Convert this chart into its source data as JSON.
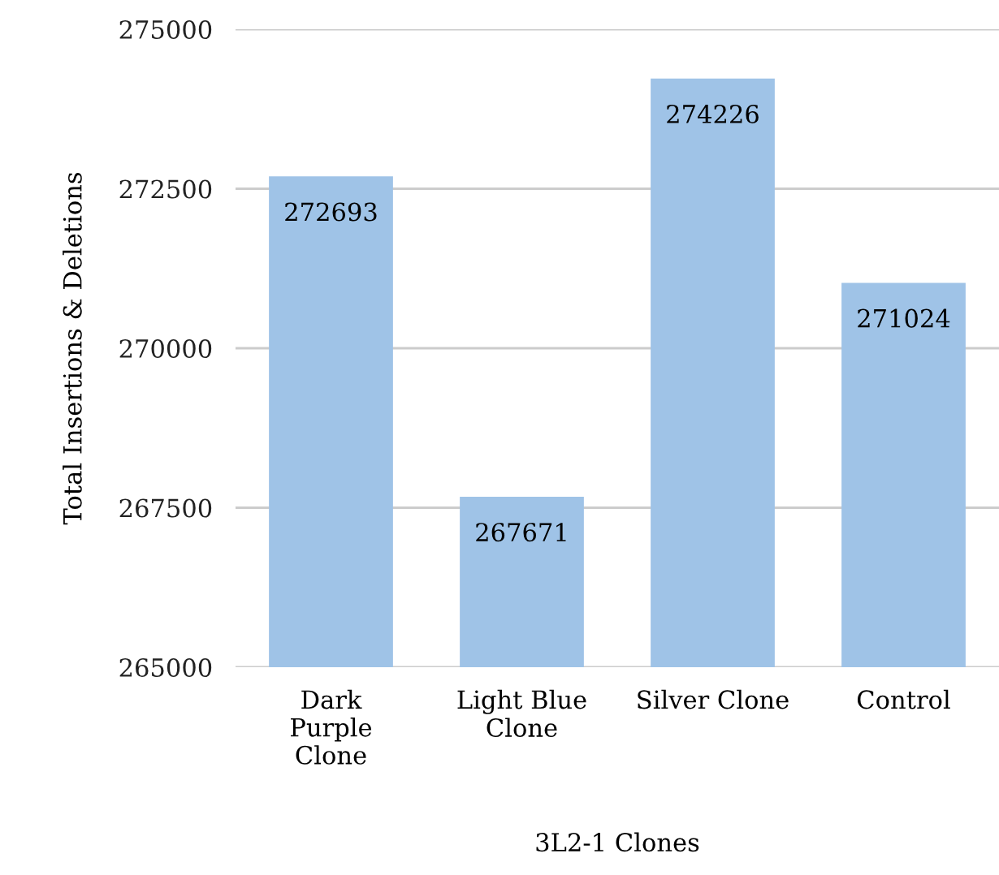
{
  "chart_data": {
    "type": "bar",
    "xlabel": "3L2-1 Clones",
    "ylabel": "Total Insertions & Deletions",
    "categories": [
      "Dark\nPurple\nClone",
      "Light Blue\nClone",
      "Silver Clone",
      "Control"
    ],
    "values": [
      272693,
      267671,
      274226,
      271024
    ],
    "color": "#9fc3e7",
    "ylim": [
      265000,
      275000
    ],
    "yticks": [
      265000,
      267500,
      270000,
      272500,
      275000
    ],
    "grid": "y",
    "data_labels": true
  }
}
